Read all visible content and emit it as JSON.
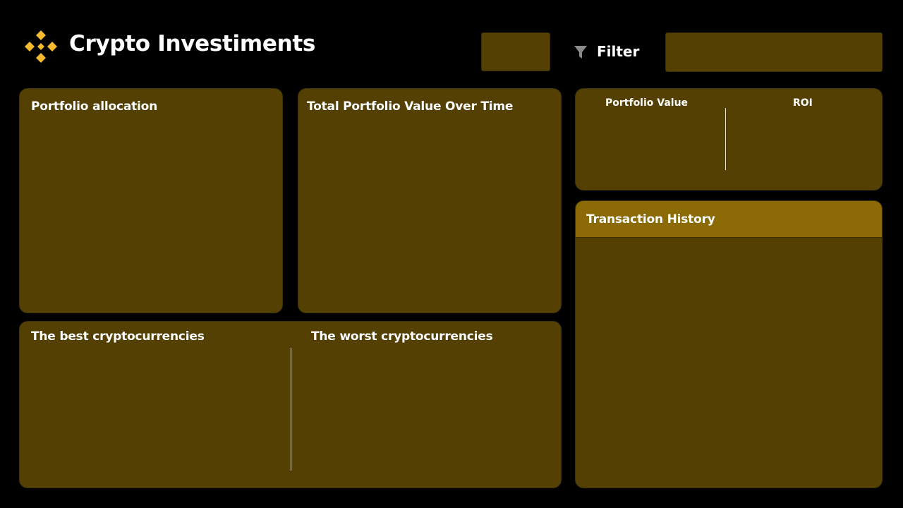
{
  "header": {
    "title": "Crypto Investiments",
    "filter_label": "Filter",
    "logo_icon": "binance-diamond-logo",
    "filter_icon": "funnel-icon"
  },
  "colors": {
    "background": "#000000",
    "card": "#544003",
    "card_header": "#8c6a06",
    "accent": "#f3ba2f",
    "text": "#ffffff"
  },
  "cards": {
    "portfolio_allocation": {
      "title": "Portfolio allocation"
    },
    "total_value": {
      "title": "Total Portfolio Value Over Time"
    },
    "kpis": {
      "portfolio_value_label": "Portfolio Value",
      "roi_label": "ROI"
    },
    "best_worst": {
      "best_title": "The best cryptocurrencies",
      "worst_title": "The worst cryptocurrencies"
    },
    "transactions": {
      "title": "Transaction History"
    }
  }
}
